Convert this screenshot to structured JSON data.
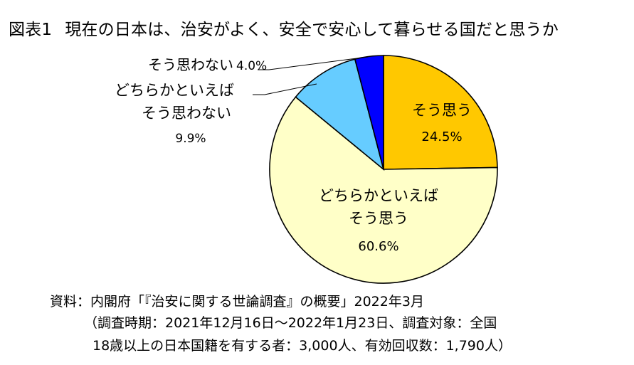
{
  "chart_data": {
    "type": "pie",
    "title_prefix": "図表1",
    "title": "現在の日本は、治安がよく、安全で安心して暮らせる国だと思うか",
    "slices": [
      {
        "label_lines": [
          "そう思う"
        ],
        "value": 24.5,
        "value_label": "24.5%",
        "color": "#FFC800"
      },
      {
        "label_lines": [
          "どちらかといえば",
          "そう思う"
        ],
        "value": 60.6,
        "value_label": "60.6%",
        "color": "#FFFFC8"
      },
      {
        "label_lines": [
          "どちらかといえば",
          "そう思わない"
        ],
        "value": 9.9,
        "value_label": "9.9%",
        "color": "#66CCFF"
      },
      {
        "label_lines": [
          "そう思わない"
        ],
        "value": 4.0,
        "value_label": "4.0%",
        "color": "#0000FF"
      }
    ]
  },
  "source": {
    "line1": "資料：内閣府「『治安に関する世論調査』の概要」2022年3月",
    "line2": "（調査時期：2021年12月16日～2022年1月23日、調査対象：全国",
    "line3": "18歳以上の日本国籍を有する者：3,000人、有効回収数：1,790人）"
  }
}
